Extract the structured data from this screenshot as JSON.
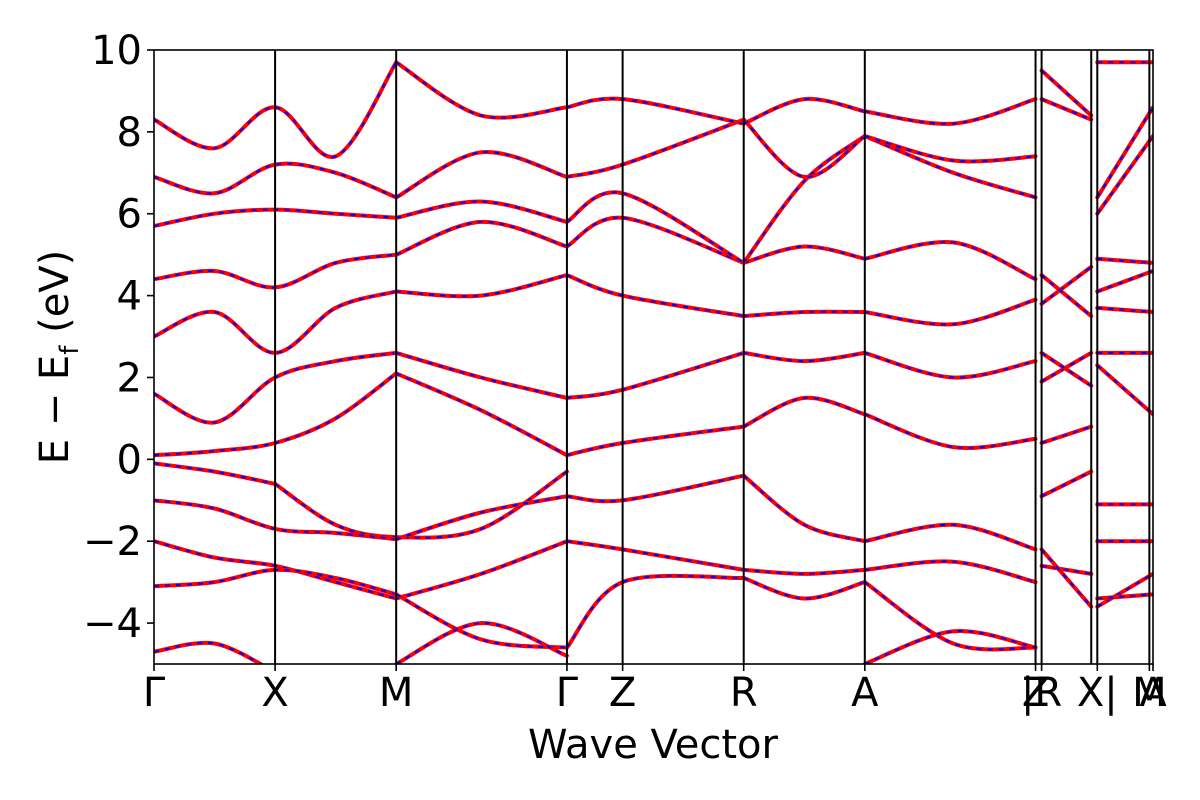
{
  "chart_data": {
    "type": "line",
    "title": "",
    "xlabel": "Wave Vector",
    "ylabel": "E − E",
    "ylabel_subscript": "f",
    "ylabel_unit": " (eV)",
    "ylim": [
      -5,
      10
    ],
    "grid": false,
    "yticks": [
      -4,
      -2,
      0,
      2,
      4,
      6,
      8,
      10
    ],
    "ytick_labels": [
      "−4",
      "−2",
      "0",
      "2",
      "4",
      "6",
      "8",
      "10"
    ],
    "kpath": [
      {
        "label": "Γ",
        "x": 0.0
      },
      {
        "label": "X",
        "x": 1.0
      },
      {
        "label": "M",
        "x": 2.0
      },
      {
        "label": "Γ",
        "x": 3.41
      },
      {
        "label": "Z",
        "x": 3.87
      },
      {
        "label": "R",
        "x": 4.87
      },
      {
        "label": "A",
        "x": 5.87
      },
      {
        "label": "Z",
        "x": 7.28
      },
      {
        "label": "|R",
        "x": 7.33
      },
      {
        "label": "X|",
        "x": 7.79
      },
      {
        "label": "M",
        "x": 8.22
      },
      {
        "label": "A",
        "x": 8.25
      }
    ],
    "segment_breaks": [
      7.28,
      7.74,
      8.25
    ],
    "xlim": [
      0.0,
      8.25
    ],
    "series_style": {
      "red_color": "#ff0000",
      "blue_color": "#0000ff"
    },
    "series": [
      {
        "x": [
          0,
          0.5,
          1.0
        ],
        "values": [
          -0.1,
          -0.3,
          -0.6
        ]
      },
      {
        "x": [
          1.0,
          1.5,
          2.0,
          2.7,
          3.41
        ],
        "values": [
          -0.6,
          -1.6,
          -1.9,
          -1.7,
          -0.3
        ]
      },
      {
        "x": [
          0,
          0.5,
          1.0,
          1.5,
          2.0
        ],
        "values": [
          0.1,
          0.2,
          0.4,
          1.0,
          2.1
        ]
      },
      {
        "x": [
          2.0,
          2.7,
          3.41
        ],
        "values": [
          2.1,
          1.2,
          0.1
        ]
      },
      {
        "x": [
          3.41,
          3.87,
          4.87
        ],
        "values": [
          0.1,
          0.4,
          0.8
        ]
      },
      {
        "x": [
          4.87,
          5.37,
          5.87
        ],
        "values": [
          0.8,
          1.5,
          1.1
        ]
      },
      {
        "x": [
          5.87,
          6.6,
          7.28
        ],
        "values": [
          1.1,
          0.3,
          0.5
        ]
      },
      {
        "x": [
          0,
          0.5,
          1.0,
          1.5,
          2.0
        ],
        "values": [
          1.6,
          0.9,
          2.0,
          2.4,
          2.6
        ]
      },
      {
        "x": [
          2.0,
          2.7,
          3.41
        ],
        "values": [
          2.6,
          2.0,
          1.5
        ]
      },
      {
        "x": [
          3.41,
          3.87,
          4.87
        ],
        "values": [
          1.5,
          1.7,
          2.6
        ]
      },
      {
        "x": [
          4.87,
          5.37,
          5.87
        ],
        "values": [
          2.6,
          2.4,
          2.6
        ]
      },
      {
        "x": [
          5.87,
          6.6,
          7.28
        ],
        "values": [
          2.6,
          2.0,
          2.4
        ]
      },
      {
        "x": [
          0,
          0.5,
          1.0,
          1.5,
          2.0
        ],
        "values": [
          3.0,
          3.6,
          2.6,
          3.7,
          4.1
        ]
      },
      {
        "x": [
          2.0,
          2.7,
          3.41
        ],
        "values": [
          4.1,
          4.0,
          4.5
        ]
      },
      {
        "x": [
          3.41,
          3.87,
          4.87
        ],
        "values": [
          4.5,
          4.0,
          3.5
        ]
      },
      {
        "x": [
          4.87,
          5.37,
          5.87
        ],
        "values": [
          3.5,
          3.6,
          3.6
        ]
      },
      {
        "x": [
          5.87,
          6.6,
          7.28
        ],
        "values": [
          3.6,
          3.3,
          3.9
        ]
      },
      {
        "x": [
          0,
          0.5,
          1.0,
          1.5,
          2.0
        ],
        "values": [
          -1.0,
          -1.2,
          -1.7,
          -1.8,
          -1.95
        ]
      },
      {
        "x": [
          2.0,
          2.7,
          3.41
        ],
        "values": [
          -1.95,
          -1.3,
          -0.9
        ]
      },
      {
        "x": [
          3.41,
          3.87,
          4.87
        ],
        "values": [
          -0.9,
          -1.0,
          -0.4
        ]
      },
      {
        "x": [
          4.87,
          5.37,
          5.87
        ],
        "values": [
          -0.4,
          -1.6,
          -2.0
        ]
      },
      {
        "x": [
          5.87,
          6.6,
          7.28
        ],
        "values": [
          -2.0,
          -1.6,
          -2.2
        ]
      },
      {
        "x": [
          0,
          0.5,
          1.0,
          1.5,
          2.0
        ],
        "values": [
          -2.0,
          -2.4,
          -2.6,
          -3.0,
          -3.4
        ]
      },
      {
        "x": [
          2.0,
          2.7,
          3.41
        ],
        "values": [
          -3.4,
          -2.8,
          -2.0
        ]
      },
      {
        "x": [
          3.41,
          3.87,
          4.87
        ],
        "values": [
          -2.0,
          -2.2,
          -2.7
        ]
      },
      {
        "x": [
          4.87,
          5.37,
          5.87
        ],
        "values": [
          -2.7,
          -2.8,
          -2.7
        ]
      },
      {
        "x": [
          5.87,
          6.6,
          7.28
        ],
        "values": [
          -2.7,
          -2.5,
          -3.0
        ]
      },
      {
        "x": [
          0,
          0.5,
          1.0,
          1.5,
          2.0
        ],
        "values": [
          -3.1,
          -3.0,
          -2.7,
          -2.9,
          -3.3
        ]
      },
      {
        "x": [
          2.0,
          2.7,
          3.41
        ],
        "values": [
          -3.3,
          -4.4,
          -4.6
        ]
      },
      {
        "x": [
          3.41,
          3.87,
          4.87
        ],
        "values": [
          -4.6,
          -3.0,
          -2.9
        ]
      },
      {
        "x": [
          4.87,
          5.37,
          5.87
        ],
        "values": [
          -2.9,
          -3.4,
          -3.0
        ]
      },
      {
        "x": [
          5.87,
          6.6,
          7.28
        ],
        "values": [
          -3.0,
          -4.5,
          -4.6
        ]
      },
      {
        "x": [
          0,
          0.5,
          1.0,
          1.5,
          2.0
        ],
        "values": [
          4.4,
          4.6,
          4.2,
          4.8,
          5.0
        ]
      },
      {
        "x": [
          2.0,
          2.7,
          3.41
        ],
        "values": [
          5.0,
          5.8,
          5.2
        ]
      },
      {
        "x": [
          3.41,
          3.87,
          4.87
        ],
        "values": [
          5.2,
          5.9,
          4.8
        ]
      },
      {
        "x": [
          4.87,
          5.37,
          5.87
        ],
        "values": [
          4.8,
          5.2,
          4.9
        ]
      },
      {
        "x": [
          5.87,
          6.6,
          7.28
        ],
        "values": [
          4.9,
          5.3,
          4.4
        ]
      },
      {
        "x": [
          0,
          0.5,
          1.0,
          1.5,
          2.0
        ],
        "values": [
          5.7,
          6.0,
          6.1,
          6.0,
          5.9
        ]
      },
      {
        "x": [
          2.0,
          2.7,
          3.41
        ],
        "values": [
          5.9,
          6.3,
          5.8
        ]
      },
      {
        "x": [
          3.41,
          3.87,
          4.87
        ],
        "values": [
          5.8,
          6.5,
          4.8
        ]
      },
      {
        "x": [
          4.87,
          5.37,
          5.87
        ],
        "values": [
          4.8,
          6.8,
          7.9
        ]
      },
      {
        "x": [
          5.87,
          6.6,
          7.28
        ],
        "values": [
          7.9,
          7.0,
          6.4
        ]
      },
      {
        "x": [
          0,
          0.5,
          1.0,
          1.5,
          2.0
        ],
        "values": [
          6.9,
          6.5,
          7.2,
          7.0,
          6.4
        ]
      },
      {
        "x": [
          2.0,
          2.7,
          3.41
        ],
        "values": [
          6.4,
          7.5,
          6.9
        ]
      },
      {
        "x": [
          3.41,
          3.87,
          4.87
        ],
        "values": [
          6.9,
          7.2,
          8.3
        ]
      },
      {
        "x": [
          4.87,
          5.37,
          5.87
        ],
        "values": [
          8.3,
          6.9,
          7.9
        ]
      },
      {
        "x": [
          5.87,
          6.6,
          7.28
        ],
        "values": [
          7.9,
          7.3,
          7.4
        ]
      },
      {
        "x": [
          0,
          0.5,
          1.0,
          1.5,
          2.0
        ],
        "values": [
          8.3,
          7.6,
          8.6,
          7.4,
          9.7
        ]
      },
      {
        "x": [
          2.0,
          2.7,
          3.41
        ],
        "values": [
          9.7,
          8.4,
          8.6
        ]
      },
      {
        "x": [
          3.41,
          3.87,
          4.87
        ],
        "values": [
          8.6,
          8.8,
          8.2
        ]
      },
      {
        "x": [
          4.87,
          5.37,
          5.87
        ],
        "values": [
          8.2,
          8.8,
          8.5
        ]
      },
      {
        "x": [
          5.87,
          6.6,
          7.28
        ],
        "values": [
          8.5,
          8.2,
          8.8
        ]
      },
      {
        "x": [
          0,
          0.5,
          1.0
        ],
        "values": [
          -4.7,
          -4.5,
          -5.2
        ]
      },
      {
        "x": [
          2.0,
          2.7,
          3.41
        ],
        "values": [
          -5.0,
          -4.0,
          -4.8
        ]
      },
      {
        "x": [
          5.87,
          6.6,
          7.28
        ],
        "values": [
          -5.0,
          -4.2,
          -4.6
        ]
      },
      {
        "x": [
          7.33,
          7.74
        ],
        "values": [
          -0.9,
          -0.3
        ]
      },
      {
        "x": [
          7.33,
          7.74
        ],
        "values": [
          0.4,
          0.8
        ]
      },
      {
        "x": [
          7.33,
          7.74
        ],
        "values": [
          1.9,
          2.6
        ]
      },
      {
        "x": [
          7.33,
          7.74
        ],
        "values": [
          2.6,
          1.8
        ]
      },
      {
        "x": [
          7.33,
          7.74
        ],
        "values": [
          3.8,
          4.7
        ]
      },
      {
        "x": [
          7.33,
          7.74
        ],
        "values": [
          4.5,
          3.5
        ]
      },
      {
        "x": [
          7.33,
          7.74
        ],
        "values": [
          -2.6,
          -2.8
        ]
      },
      {
        "x": [
          7.33,
          7.74
        ],
        "values": [
          -2.2,
          -3.6
        ]
      },
      {
        "x": [
          7.33,
          7.74
        ],
        "values": [
          8.8,
          8.3
        ]
      },
      {
        "x": [
          7.33,
          7.74
        ],
        "values": [
          9.5,
          8.4
        ]
      },
      {
        "x": [
          7.79,
          8.25
        ],
        "values": [
          -1.1,
          -1.1
        ]
      },
      {
        "x": [
          7.79,
          8.25
        ],
        "values": [
          -2.0,
          -2.0
        ]
      },
      {
        "x": [
          7.79,
          8.25
        ],
        "values": [
          -3.6,
          -2.8
        ]
      },
      {
        "x": [
          7.79,
          8.25
        ],
        "values": [
          -3.4,
          -3.3
        ]
      },
      {
        "x": [
          7.79,
          8.25
        ],
        "values": [
          2.6,
          2.6
        ]
      },
      {
        "x": [
          7.79,
          8.25
        ],
        "values": [
          2.3,
          1.1
        ]
      },
      {
        "x": [
          7.79,
          8.25
        ],
        "values": [
          3.7,
          3.6
        ]
      },
      {
        "x": [
          7.79,
          8.25
        ],
        "values": [
          4.9,
          4.8
        ]
      },
      {
        "x": [
          7.79,
          8.25
        ],
        "values": [
          4.1,
          4.6
        ]
      },
      {
        "x": [
          7.79,
          8.25
        ],
        "values": [
          6.0,
          7.9
        ]
      },
      {
        "x": [
          7.79,
          8.25
        ],
        "values": [
          6.4,
          8.6
        ]
      },
      {
        "x": [
          7.79,
          8.25
        ],
        "values": [
          9.7,
          9.7
        ]
      }
    ]
  }
}
